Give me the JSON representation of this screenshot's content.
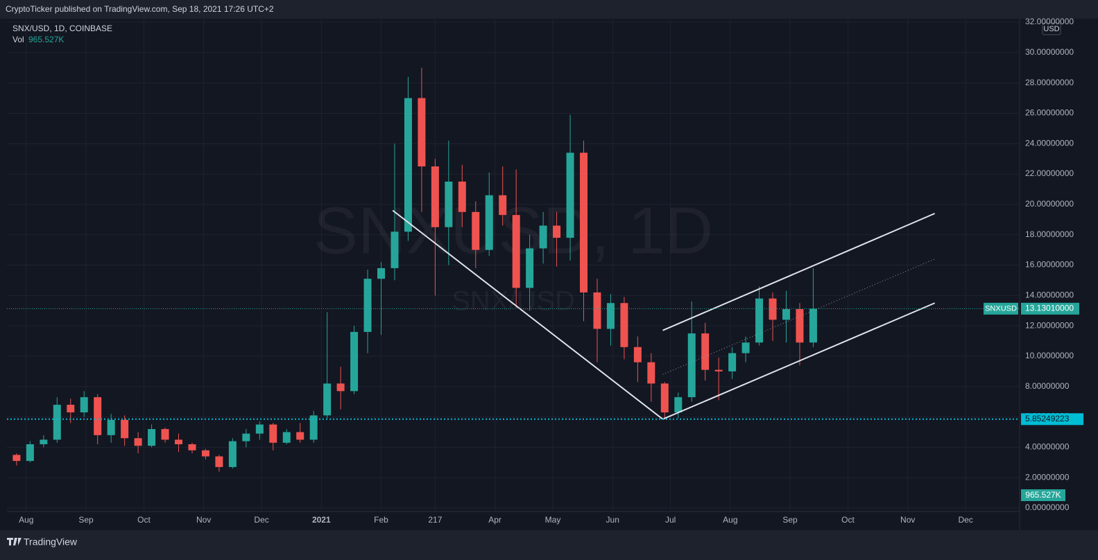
{
  "header": {
    "publisher": "CryptoTicker published on TradingView.com, Sep 18, 2021 17:26 UTC+2",
    "symbol": "SNX/USD, 1D, COINBASE",
    "vol_label": "Vol",
    "vol_value": "965.527K",
    "watermark": "SNXUSD, 1D",
    "watermark_symbol": "SNX/USD",
    "currency": "USD",
    "brand": "TradingView"
  },
  "chart_data": {
    "type": "candlestick",
    "xlim": [
      -5,
      520
    ],
    "xticks": [
      {
        "value": 5,
        "label": "Aug"
      },
      {
        "value": 36,
        "label": "Sep"
      },
      {
        "value": 66,
        "label": "Oct"
      },
      {
        "value": 97,
        "label": "Nov"
      },
      {
        "value": 127,
        "label": "Dec"
      },
      {
        "value": 158,
        "label": "2021"
      },
      {
        "value": 189,
        "label": "Feb"
      },
      217,
      {
        "value": 248,
        "label": "Apr"
      },
      {
        "value": 278,
        "label": "May"
      },
      {
        "value": 309,
        "label": "Jun"
      },
      {
        "value": 339,
        "label": "Jul"
      },
      {
        "value": 370,
        "label": "Aug"
      },
      {
        "value": 401,
        "label": "Sep"
      },
      {
        "value": 431,
        "label": "Oct"
      },
      {
        "value": 462,
        "label": "Nov"
      },
      {
        "value": 492,
        "label": "Dec"
      }
    ],
    "ylim": [
      0,
      32
    ],
    "yticks": [
      {
        "value": 0,
        "label": "0.00000000"
      },
      {
        "value": 2,
        "label": "2.00000000"
      },
      {
        "value": 4,
        "label": "4.00000000"
      },
      {
        "value": 6,
        "label": "6.00000000"
      },
      {
        "value": 8,
        "label": "8.00000000"
      },
      {
        "value": 10,
        "label": "10.00000000"
      },
      {
        "value": 12,
        "label": "12.00000000"
      },
      {
        "value": 14,
        "label": "14.00000000"
      },
      {
        "value": 16,
        "label": "16.00000000"
      },
      {
        "value": 18,
        "label": "18.00000000"
      },
      {
        "value": 20,
        "label": "20.00000000"
      },
      {
        "value": 22,
        "label": "22.00000000"
      },
      {
        "value": 24,
        "label": "24.00000000"
      },
      {
        "value": 26,
        "label": "26.00000000"
      },
      {
        "value": 28,
        "label": "28.00000000"
      },
      {
        "value": 30,
        "label": "30.00000000"
      },
      {
        "value": 32,
        "label": "32.00000000"
      }
    ],
    "grid": true,
    "up_color": "#26a69a",
    "down_color": "#ef5350",
    "x": [
      0,
      7,
      14,
      21,
      28,
      35,
      42,
      49,
      56,
      63,
      70,
      77,
      84,
      91,
      98,
      105,
      112,
      119,
      126,
      133,
      140,
      147,
      154,
      161,
      168,
      175,
      182,
      189,
      196,
      203,
      210,
      217,
      224,
      231,
      238,
      245,
      252,
      259,
      266,
      273,
      280,
      287,
      294,
      301,
      308,
      315,
      322,
      329,
      336,
      343,
      350,
      357,
      364,
      371,
      378,
      385,
      392,
      399,
      406,
      413
    ],
    "open": [
      3.5,
      3.1,
      4.2,
      4.5,
      6.8,
      6.3,
      7.3,
      4.8,
      5.8,
      4.6,
      4.1,
      5.2,
      4.5,
      4.2,
      3.8,
      3.4,
      2.7,
      4.4,
      4.9,
      5.5,
      4.3,
      5.0,
      4.5,
      6.1,
      8.2,
      7.7,
      11.6,
      15.1,
      15.8,
      18.2,
      27.0,
      22.5,
      18.5,
      21.5,
      19.5,
      17.0,
      20.6,
      19.3,
      14.5,
      17.1,
      18.6,
      17.8,
      23.4,
      14.2,
      11.8,
      13.5,
      10.6,
      9.6,
      8.2,
      6.3,
      7.3,
      11.5,
      9.1,
      9.0,
      10.2,
      10.9,
      13.8,
      12.4,
      13.1,
      10.9
    ],
    "high": [
      3.6,
      4.4,
      4.8,
      7.3,
      7.2,
      7.7,
      7.5,
      6.2,
      6.1,
      5.0,
      5.5,
      5.3,
      4.9,
      4.3,
      3.9,
      3.5,
      4.6,
      5.2,
      5.7,
      5.6,
      5.2,
      5.6,
      6.4,
      12.9,
      9.3,
      12.0,
      15.7,
      16.2,
      24.0,
      28.4,
      29.0,
      23.0,
      24.2,
      22.6,
      20.2,
      22.1,
      22.5,
      22.3,
      18.0,
      19.5,
      19.5,
      25.9,
      24.2,
      15.1,
      14.1,
      13.9,
      11.3,
      10.2,
      8.3,
      7.6,
      13.6,
      12.2,
      9.9,
      10.6,
      11.3,
      14.6,
      14.2,
      14.3,
      13.5,
      15.8
    ],
    "low": [
      2.8,
      3.0,
      4.0,
      4.3,
      5.6,
      6.0,
      4.2,
      4.3,
      4.1,
      3.6,
      4.0,
      4.3,
      3.7,
      3.6,
      3.2,
      2.4,
      2.6,
      4.0,
      4.5,
      3.8,
      4.2,
      4.3,
      4.3,
      5.9,
      6.5,
      7.5,
      10.2,
      11.4,
      15.0,
      17.6,
      19.5,
      14.0,
      16.0,
      18.5,
      15.8,
      16.6,
      18.6,
      13.2,
      13.0,
      16.1,
      15.9,
      16.3,
      12.3,
      9.6,
      10.7,
      9.8,
      8.3,
      7.0,
      5.85,
      5.9,
      7.0,
      8.4,
      7.1,
      8.5,
      9.6,
      10.7,
      11.0,
      10.9,
      9.4,
      10.6
    ],
    "close": [
      3.1,
      4.2,
      4.5,
      6.8,
      6.3,
      7.3,
      4.8,
      5.8,
      4.6,
      4.1,
      5.2,
      4.5,
      4.2,
      3.8,
      3.4,
      2.7,
      4.4,
      4.9,
      5.5,
      4.3,
      5.0,
      4.5,
      6.1,
      8.2,
      7.7,
      11.6,
      15.1,
      15.8,
      18.2,
      27.0,
      22.5,
      18.5,
      21.5,
      19.5,
      17.0,
      20.6,
      19.3,
      14.5,
      17.1,
      18.6,
      17.8,
      23.4,
      14.2,
      11.8,
      13.5,
      10.6,
      9.6,
      8.2,
      6.3,
      7.3,
      11.5,
      9.1,
      9.0,
      10.2,
      10.9,
      13.8,
      12.4,
      13.1,
      10.9,
      13.1301
    ],
    "last_price": {
      "name": "SNXUSD",
      "value": 13.1301,
      "label": "13.13010000",
      "color": "#26a69a"
    },
    "level": {
      "value": 5.85249223,
      "label": "5.85249223",
      "color": "#00bcd4"
    },
    "drawings": [
      {
        "x": [
          195,
          335
        ],
        "y": [
          19.6,
          5.85
        ],
        "style": "solid"
      },
      {
        "x": [
          335,
          476
        ],
        "y": [
          11.7,
          19.4
        ],
        "style": "solid"
      },
      {
        "x": [
          335,
          476
        ],
        "y": [
          8.8,
          16.4
        ],
        "style": "dotted"
      },
      {
        "x": [
          335,
          476
        ],
        "y": [
          5.85,
          13.5
        ],
        "style": "solid"
      }
    ]
  }
}
